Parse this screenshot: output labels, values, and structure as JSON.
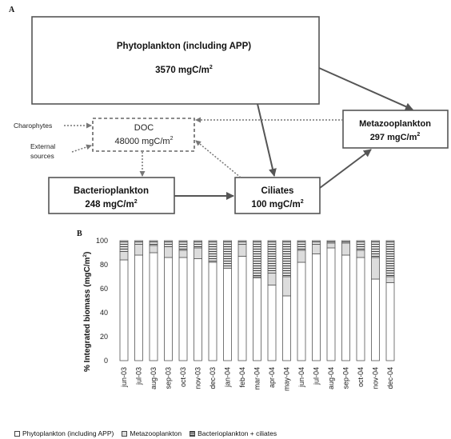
{
  "panel_a": {
    "letter": "A",
    "nodes": {
      "phyto": {
        "name": "Phytoplankton (including APP)",
        "value": "3570 mgC/m",
        "sup": "2"
      },
      "doc": {
        "name": "DOC",
        "value": "48000 mgC/m",
        "sup": "2"
      },
      "meta": {
        "name": "Metazooplankton",
        "value": "297 mgC/m",
        "sup": "2"
      },
      "bact": {
        "name": "Bacterioplankton",
        "value": "248 mgC/m",
        "sup": "2"
      },
      "cil": {
        "name": "Ciliates",
        "value": "100 mgC/m",
        "sup": "2"
      }
    },
    "side_labels": {
      "charophytes": "Charophytes",
      "external1": "External",
      "external2": "sources"
    },
    "colors": {
      "solid_arrow": "#555555",
      "dotted_arrow": "#777777",
      "box_border": "#555555"
    }
  },
  "panel_b": {
    "letter": "B",
    "legend": [
      {
        "label": "Phytoplankton (including APP)",
        "pattern": "white"
      },
      {
        "label": "Metazooplankton",
        "pattern": "light-gray"
      },
      {
        "label": "Bacterioplankton + ciliates",
        "pattern": "hatched"
      }
    ]
  },
  "chart_data": {
    "type": "bar",
    "stacked": true,
    "categories": [
      "jun-03",
      "jul-03",
      "aug-03",
      "sep-03",
      "oct-03",
      "nov-03",
      "dec-03",
      "jan-04",
      "feb-04",
      "mar-04",
      "apr-04",
      "may-04",
      "jun-04",
      "jul-04",
      "aug-04",
      "sep-04",
      "oct-04",
      "nov-04",
      "dec-04"
    ],
    "series": [
      {
        "name": "Phytoplankton (including APP)",
        "values": [
          84,
          88,
          90,
          86,
          86,
          85,
          82,
          77,
          87,
          69,
          63,
          54,
          82,
          89,
          94,
          88,
          86,
          68,
          65
        ]
      },
      {
        "name": "Metazooplankton",
        "values": [
          7,
          9,
          6,
          9,
          6,
          9,
          1,
          2,
          10,
          1,
          10,
          16,
          10,
          8,
          4,
          10,
          6,
          18,
          5
        ]
      },
      {
        "name": "Bacterioplankton + ciliates",
        "values": [
          9,
          3,
          4,
          5,
          8,
          6,
          17,
          21,
          3,
          30,
          27,
          30,
          8,
          3,
          2,
          2,
          8,
          14,
          30
        ]
      }
    ],
    "ylabel": "% Integrated biomass (mgC/m",
    "ylabel_sup": "2",
    "ylabel_end": ")",
    "yticks": [
      0,
      20,
      40,
      60,
      80,
      100
    ],
    "ylim": [
      0,
      100
    ],
    "grid": false,
    "legend_position": "bottom"
  }
}
